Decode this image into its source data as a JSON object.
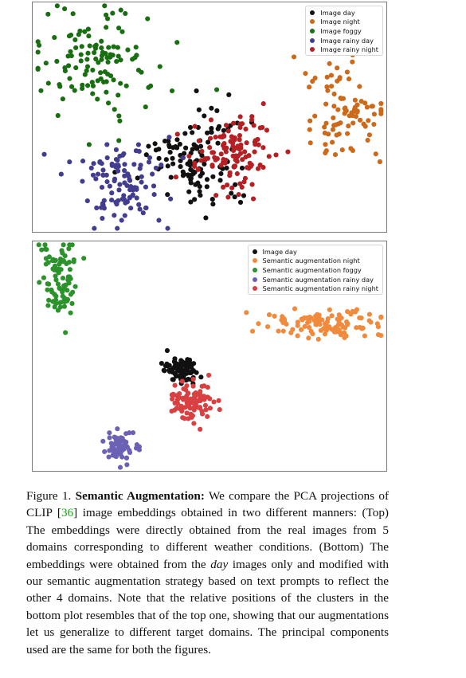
{
  "colors": {
    "day": "#111111",
    "night_top": "#cc6a1c",
    "foggy_top": "#1a6e12",
    "rainy_day_top": "#433d8f",
    "rainy_night_top": "#b52024",
    "night_bottom": "#f08a3c",
    "foggy_bottom": "#2c922c",
    "rainy_day_bottom": "#6b62b5",
    "rainy_night_bottom": "#d94042"
  },
  "chart_data": [
    {
      "type": "scatter",
      "title": "",
      "xlabel": "",
      "ylabel": "",
      "grid": false,
      "axes_visible": false,
      "legend_position": "top-right",
      "series": [
        {
          "name": "Image day",
          "color_key": "day",
          "center": [
            0.46,
            0.7
          ],
          "spread": [
            0.065,
            0.11
          ],
          "count": 120
        },
        {
          "name": "Image night",
          "color_key": "night_top",
          "center": [
            0.88,
            0.45
          ],
          "spread": [
            0.055,
            0.11
          ],
          "count": 90
        },
        {
          "name": "Image foggy",
          "color_key": "foggy_top",
          "center": [
            0.19,
            0.27
          ],
          "spread": [
            0.09,
            0.13
          ],
          "count": 120
        },
        {
          "name": "Image rainy day",
          "color_key": "rainy_day_top",
          "center": [
            0.26,
            0.8
          ],
          "spread": [
            0.07,
            0.09
          ],
          "count": 110
        },
        {
          "name": "Image rainy night",
          "color_key": "rainy_night_top",
          "center": [
            0.57,
            0.65
          ],
          "spread": [
            0.055,
            0.085
          ],
          "count": 120
        }
      ]
    },
    {
      "type": "scatter",
      "title": "",
      "xlabel": "",
      "ylabel": "",
      "grid": false,
      "axes_visible": false,
      "legend_position": "top-right",
      "series": [
        {
          "name": "Image day",
          "color_key": "day",
          "center": [
            0.42,
            0.56
          ],
          "spread": [
            0.022,
            0.028
          ],
          "count": 90
        },
        {
          "name": "Semantic augmentation night",
          "color_key": "night_bottom",
          "center": [
            0.82,
            0.36
          ],
          "spread": [
            0.09,
            0.03
          ],
          "count": 110
        },
        {
          "name": "Semantic augmentation foggy",
          "color_key": "foggy_bottom",
          "center": [
            0.08,
            0.16
          ],
          "spread": [
            0.025,
            0.095
          ],
          "count": 90
        },
        {
          "name": "Semantic augmentation rainy day",
          "color_key": "rainy_day_bottom",
          "center": [
            0.25,
            0.89
          ],
          "spread": [
            0.02,
            0.035
          ],
          "count": 70
        },
        {
          "name": "Semantic augmentation rainy night",
          "color_key": "rainy_night_bottom",
          "center": [
            0.45,
            0.7
          ],
          "spread": [
            0.03,
            0.04
          ],
          "count": 100
        }
      ]
    }
  ],
  "caption": {
    "figure_label": "Figure 1.",
    "title": "Semantic Augmentation:",
    "text_1": "We compare the PCA projections of CLIP ",
    "cite_open": "[",
    "cite_num": "36",
    "cite_close": "]",
    "text_2": " image embeddings obtained in two different manners: (Top) The embeddings were directly obtained from the real images from 5 domains corresponding to different weather conditions. (Bottom) The embeddings were obtained from the ",
    "emph": "day",
    "text_3": " images only and modified with our semantic augmentation strategy based on text prompts to reflect the other 4 domains. Note that the relative positions of the clusters in the bottom plot resembles that of the top one, showing that our augmentations let us generalize to different target domains. The principal components used are the same for both the figures."
  }
}
